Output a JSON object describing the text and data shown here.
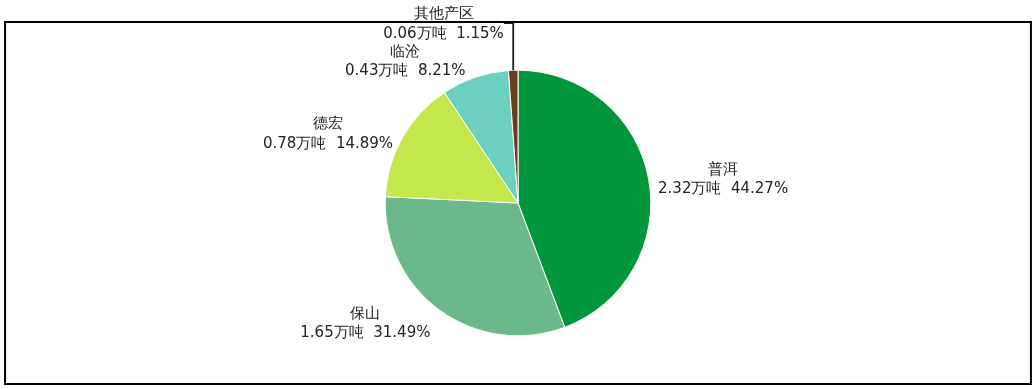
{
  "chart_data": {
    "type": "pie",
    "categories": [
      "普洱",
      "保山",
      "德宏",
      "临沧",
      "其他产区"
    ],
    "values": [
      2.32,
      1.65,
      0.78,
      0.43,
      0.06
    ],
    "value_labels": [
      "2.32万吨  44.27%",
      "1.65万吨  31.49%",
      "0.78万吨  14.89%",
      "0.43万吨  8.21%",
      "0.06万吨  1.15%"
    ],
    "colors": [
      "#00963c",
      "#6bb98a",
      "#c4e84c",
      "#6dcfc0",
      "#6b3d1c"
    ],
    "legend": false
  }
}
